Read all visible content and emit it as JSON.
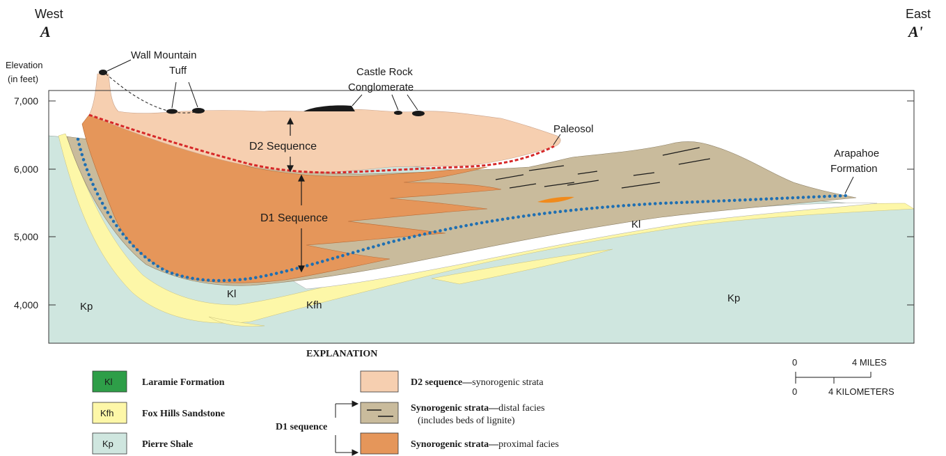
{
  "header": {
    "west_label": "West",
    "west_letter": "A",
    "east_label": "East",
    "east_letter": "A'"
  },
  "axis": {
    "title_line1": "Elevation",
    "title_line2": "(in feet)",
    "ticks": [
      "7,000",
      "6,000",
      "5,000",
      "4,000"
    ]
  },
  "section_labels": {
    "wall_mountain_line1": "Wall Mountain",
    "wall_mountain_line2": "Tuff",
    "castle_rock_line1": "Castle Rock",
    "castle_rock_line2": "Conglomerate",
    "paleosol": "Paleosol",
    "arapahoe_line1": "Arapahoe",
    "arapahoe_line2": "Formation",
    "d2_sequence": "D2 Sequence",
    "d1_sequence": "D1 Sequence",
    "kl_west": "Kl",
    "kl_east": "Kl",
    "kfh": "Kfh",
    "kp_west": "Kp",
    "kp_east": "Kp"
  },
  "explanation": {
    "title": "EXPLANATION",
    "left_items": [
      {
        "code": "Kl",
        "name": "Laramie Formation",
        "color": "#2e9e48"
      },
      {
        "code": "Kfh",
        "name": "Fox Hills Sandstone",
        "color": "#fdf7a8"
      },
      {
        "code": "Kp",
        "name": "Pierre Shale",
        "color": "#cfe6df"
      }
    ],
    "d2": {
      "bold": "D2 sequence—",
      "rest": "synorogenic strata",
      "color": "#f6cfb0"
    },
    "d1_group_label": "D1 sequence",
    "distal": {
      "bold": "Synorogenic strata—",
      "rest": "distal facies",
      "sub": "(includes beds of lignite)",
      "color": "#c9bb9c"
    },
    "proximal": {
      "bold": "Synorogenic strata—",
      "rest": "proximal facies",
      "color": "#e5965a"
    }
  },
  "scale_bar": {
    "miles_zero": "0",
    "miles_label": "4 MILES",
    "km_zero": "0",
    "km_label": "4 KILOMETERS"
  },
  "colors": {
    "pierre_shale": "#cfe6df",
    "fox_hills": "#fdf7a8",
    "d1_proximal": "#e5965a",
    "d1_distal": "#c9bb9c",
    "d2": "#f6cfb0",
    "paleosol_line": "#d62828",
    "unconformity_dots": "#1f6fb2",
    "tuff": "#1a1a1a"
  }
}
